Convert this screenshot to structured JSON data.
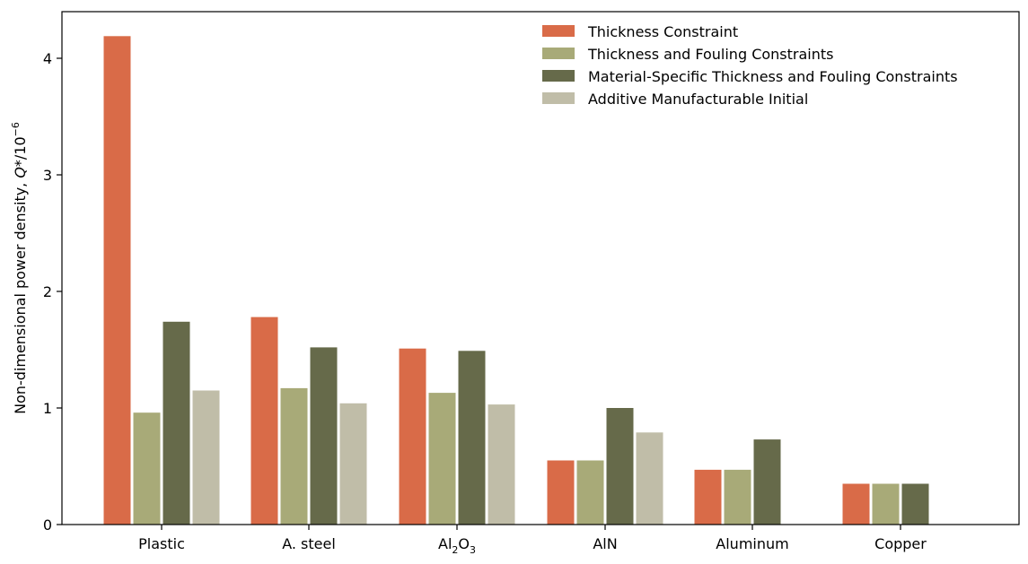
{
  "chart_data": {
    "type": "bar",
    "title": "",
    "xlabel": "",
    "ylabel": "Non-dimensional power density, ",
    "ylabel_var": "Q*",
    "ylabel_unit": "/10",
    "ylabel_exp": "−6",
    "ylim": [
      0,
      4.4
    ],
    "yticks": [
      {
        "value": 0,
        "label": "0"
      },
      {
        "value": 1,
        "label": "1"
      },
      {
        "value": 2,
        "label": "2"
      },
      {
        "value": 3,
        "label": "3"
      },
      {
        "value": 4,
        "label": "4"
      }
    ],
    "categories": [
      {
        "text": "Plastic"
      },
      {
        "text": "A. steel"
      },
      {
        "text": "Al",
        "sub1": "2",
        "mid": "O",
        "sub2": "3"
      },
      {
        "text": "AlN"
      },
      {
        "text": "Aluminum"
      },
      {
        "text": "Copper"
      }
    ],
    "legend_position": "top-right",
    "series": [
      {
        "name": "Thickness Constraint",
        "color": "#d96b48",
        "values": [
          4.19,
          1.78,
          1.51,
          0.55,
          0.47,
          0.35
        ]
      },
      {
        "name": "Thickness and Fouling Constraints",
        "color": "#a8aa78",
        "values": [
          0.96,
          1.17,
          1.13,
          0.55,
          0.47,
          0.35
        ]
      },
      {
        "name": "Material-Specific Thickness and Fouling Constraints",
        "color": "#666a4a",
        "values": [
          1.74,
          1.52,
          1.49,
          1.0,
          0.73,
          0.35
        ]
      },
      {
        "name": "Additive Manufacturable Initial",
        "color": "#c0bda8",
        "values": [
          1.15,
          1.04,
          1.03,
          0.79,
          null,
          null
        ]
      }
    ]
  }
}
